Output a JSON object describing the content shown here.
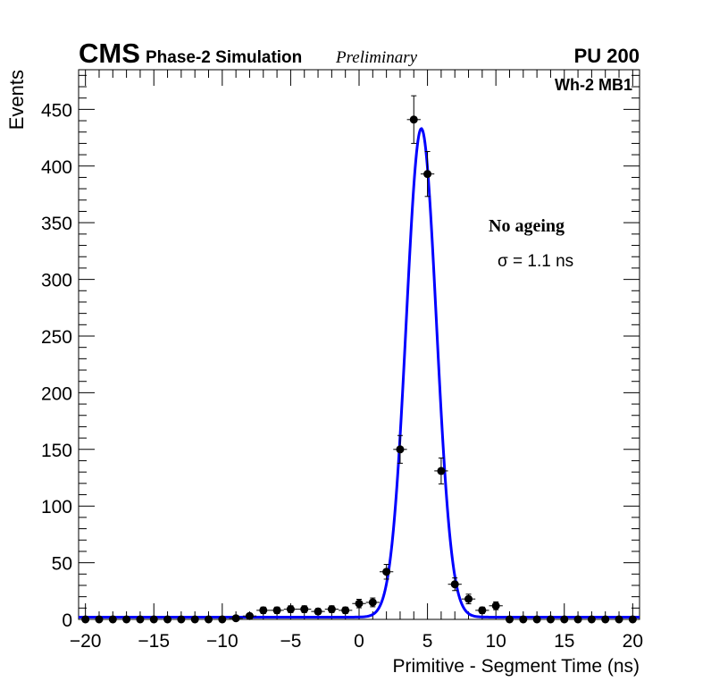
{
  "header": {
    "experiment": "CMS",
    "subtitle": "Phase-2 Simulation",
    "status": "Preliminary",
    "pileup": "PU 200"
  },
  "chart_data": {
    "type": "scatter",
    "title": "",
    "xlabel": "Primitive - Segment Time (ns)",
    "ylabel": "Events",
    "xlim": [
      -20.5,
      20.5
    ],
    "ylim": [
      0,
      485
    ],
    "x_ticks": [
      -20,
      -15,
      -10,
      -5,
      0,
      5,
      10,
      15,
      20
    ],
    "y_ticks": [
      0,
      50,
      100,
      150,
      200,
      250,
      300,
      350,
      400,
      450
    ],
    "grid": false,
    "legend": "none",
    "annotations": {
      "region": "Wh-2 MB1",
      "condition": "No ageing",
      "resolution": "σ = 1.1 ns"
    },
    "series": [
      {
        "kind": "points-with-errors",
        "color": "#000000",
        "bin_half_width": 0.5,
        "x": [
          -20,
          -19,
          -18,
          -17,
          -16,
          -15,
          -14,
          -13,
          -12,
          -11,
          -10,
          -9,
          -8,
          -7,
          -6,
          -5,
          -4,
          -3,
          -2,
          -1,
          0,
          1,
          2,
          3,
          4,
          5,
          6,
          7,
          8,
          9,
          10,
          11,
          12,
          13,
          14,
          15,
          16,
          17,
          18,
          19,
          20
        ],
        "y": [
          0,
          0,
          0,
          0,
          0,
          0,
          0,
          0,
          0,
          0,
          0,
          1,
          3,
          8,
          8,
          9,
          9,
          7,
          9,
          8,
          14,
          15,
          42,
          150,
          441,
          393,
          131,
          31,
          18,
          8,
          12,
          0,
          0,
          0,
          0,
          0,
          0,
          0,
          0,
          0,
          0
        ]
      },
      {
        "kind": "gaussian-fit",
        "color": "#0000ff",
        "mean": 4.55,
        "sigma": 1.1,
        "amplitude": 431,
        "baseline": 2
      }
    ]
  }
}
